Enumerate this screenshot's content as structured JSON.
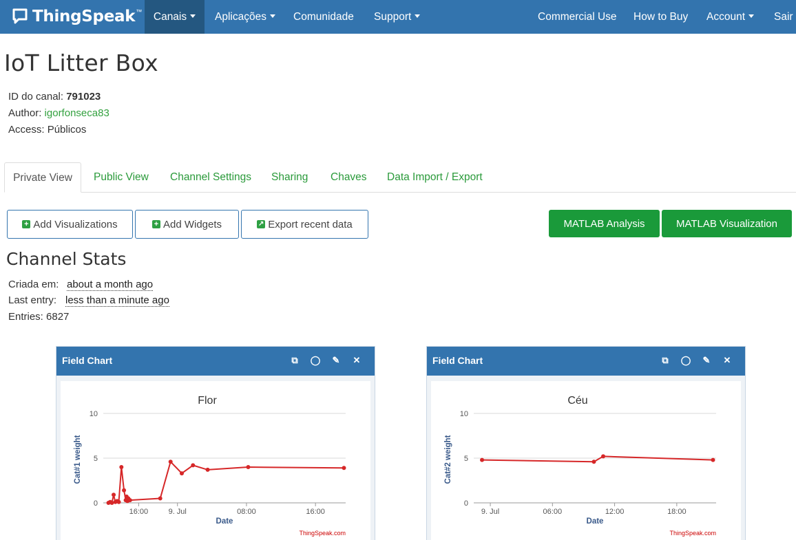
{
  "navbar": {
    "brand": "ThingSpeak",
    "brand_tm": "™",
    "items": [
      {
        "label": "Canais",
        "dropdown": true,
        "active": true
      },
      {
        "label": "Aplicações",
        "dropdown": true
      },
      {
        "label": "Comunidade",
        "dropdown": false
      },
      {
        "label": "Support",
        "dropdown": true
      },
      {
        "label": "Commercial Use",
        "dropdown": false
      },
      {
        "label": "How to Buy",
        "dropdown": false
      },
      {
        "label": "Account",
        "dropdown": true
      },
      {
        "label": "Sair",
        "dropdown": false
      }
    ],
    "colors": {
      "bar": "#3374ae",
      "active": "#245780"
    }
  },
  "channel": {
    "title": "IoT Litter Box",
    "id_label": "ID do canal:",
    "id_value": "791023",
    "author_label": "Author:",
    "author_value": "igorfonseca83",
    "access_label": "Access:",
    "access_value": "Públicos"
  },
  "tabs": [
    {
      "label": "Private View",
      "active": true
    },
    {
      "label": "Public View"
    },
    {
      "label": "Channel Settings"
    },
    {
      "label": "Sharing"
    },
    {
      "label": "Chaves"
    },
    {
      "label": "Data Import / Export"
    }
  ],
  "actions": {
    "add_visualizations": "Add Visualizations",
    "add_widgets": "Add Widgets",
    "export_recent": "Export recent data",
    "matlab_analysis": "MATLAB Analysis",
    "matlab_visualization": "MATLAB Visualization"
  },
  "stats": {
    "title": "Channel Stats",
    "created_label": "Criada em:",
    "created_value": "about a month ago",
    "last_entry_label": "Last entry:",
    "last_entry_value": "less than a minute ago",
    "entries_label": "Entries:",
    "entries_value": "6827"
  },
  "panels": [
    {
      "title": "Field Chart",
      "icons": [
        "external-link-icon",
        "comment-icon",
        "pencil-icon",
        "close-icon"
      ]
    },
    {
      "title": "Field Chart",
      "icons": [
        "external-link-icon",
        "comment-icon",
        "pencil-icon",
        "close-icon"
      ]
    }
  ],
  "chart_data": [
    {
      "type": "line",
      "title": "Flor",
      "xlabel": "Date",
      "ylabel": "Cat#1 weight",
      "credit": "ThingSpeak.com",
      "ylim": [
        0,
        10
      ],
      "yticks": [
        0,
        5,
        10
      ],
      "xticks": [
        {
          "label": "16:00",
          "x": 3.5
        },
        {
          "label": "9. Jul",
          "x": 8
        },
        {
          "label": "08:00",
          "x": 16
        },
        {
          "label": "16:00",
          "x": 24
        }
      ],
      "xlim": [
        -0.6,
        27.5
      ],
      "x": [
        0,
        0.2,
        0.4,
        0.6,
        0.8,
        1.0,
        1.2,
        1.5,
        1.8,
        2.0,
        2.1,
        2.2,
        2.3,
        2.5,
        6.0,
        7.2,
        8.5,
        9.8,
        11.5,
        16.2,
        27.3
      ],
      "values": [
        0.0,
        0.1,
        0.0,
        0.9,
        0.1,
        0.2,
        0.1,
        4.0,
        1.4,
        0.3,
        0.7,
        0.2,
        0.5,
        0.3,
        0.5,
        4.6,
        3.3,
        4.2,
        3.7,
        4.0,
        3.9
      ],
      "color": "#d62728",
      "grid": true,
      "legend": "none"
    },
    {
      "type": "line",
      "title": "Céu",
      "xlabel": "Date",
      "ylabel": "Cat#2 weight",
      "credit": "ThingSpeak.com",
      "ylim": [
        0,
        10
      ],
      "yticks": [
        0,
        5,
        10
      ],
      "xticks": [
        {
          "label": "9. Jul",
          "x": 0
        },
        {
          "label": "06:00",
          "x": 6
        },
        {
          "label": "12:00",
          "x": 12
        },
        {
          "label": "18:00",
          "x": 18
        }
      ],
      "xlim": [
        -1.6,
        21.8
      ],
      "x": [
        -0.8,
        10.0,
        10.9,
        21.5
      ],
      "values": [
        4.8,
        4.6,
        5.2,
        4.8
      ],
      "color": "#d62728",
      "grid": true,
      "legend": "none"
    }
  ]
}
